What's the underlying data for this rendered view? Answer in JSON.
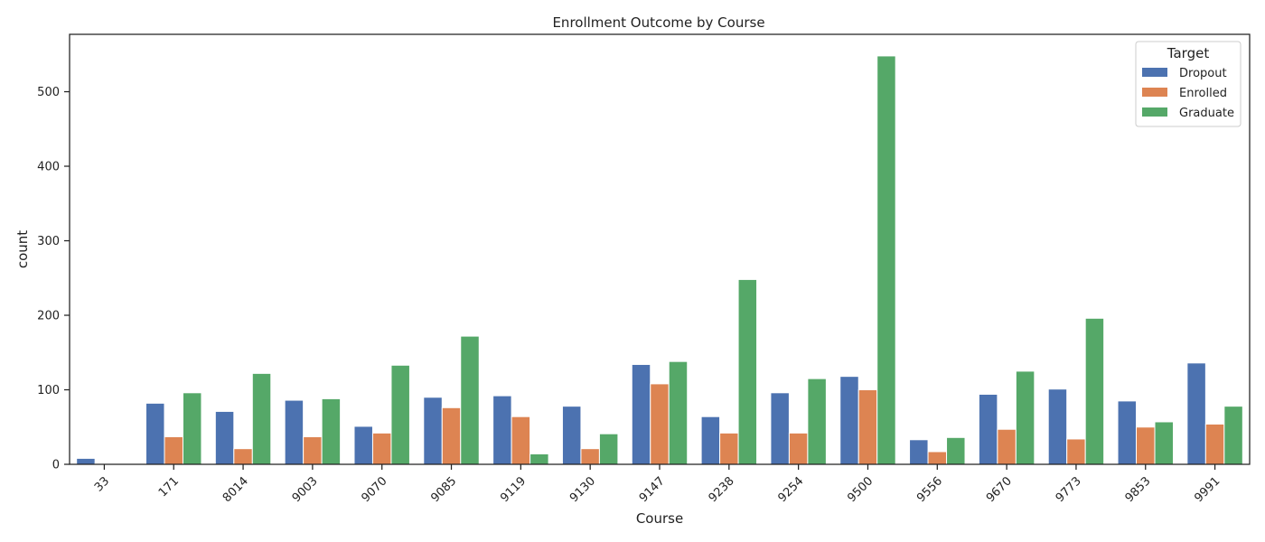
{
  "chart_data": {
    "type": "bar",
    "title": "Enrollment Outcome by Course",
    "xlabel": "Course",
    "ylabel": "count",
    "categories": [
      "33",
      "171",
      "8014",
      "9003",
      "9070",
      "9085",
      "9119",
      "9130",
      "9147",
      "9238",
      "9254",
      "9500",
      "9556",
      "9670",
      "9773",
      "9853",
      "9991"
    ],
    "series": [
      {
        "name": "Dropout",
        "color": "#4c72b0",
        "values": [
          8,
          82,
          71,
          86,
          51,
          90,
          92,
          78,
          134,
          64,
          96,
          118,
          33,
          94,
          101,
          85,
          136
        ]
      },
      {
        "name": "Enrolled",
        "color": "#dd8452",
        "values": [
          1,
          37,
          21,
          37,
          42,
          76,
          64,
          21,
          108,
          42,
          42,
          100,
          17,
          47,
          34,
          50,
          54
        ]
      },
      {
        "name": "Graduate",
        "color": "#55a868",
        "values": [
          0,
          96,
          122,
          88,
          133,
          172,
          14,
          41,
          138,
          248,
          115,
          548,
          36,
          125,
          196,
          57,
          78
        ]
      }
    ],
    "yticks": [
      0,
      100,
      200,
      300,
      400,
      500
    ],
    "ylim": [
      0,
      577
    ],
    "grid": false,
    "legend": {
      "title": "Target",
      "position": "top-right"
    }
  }
}
